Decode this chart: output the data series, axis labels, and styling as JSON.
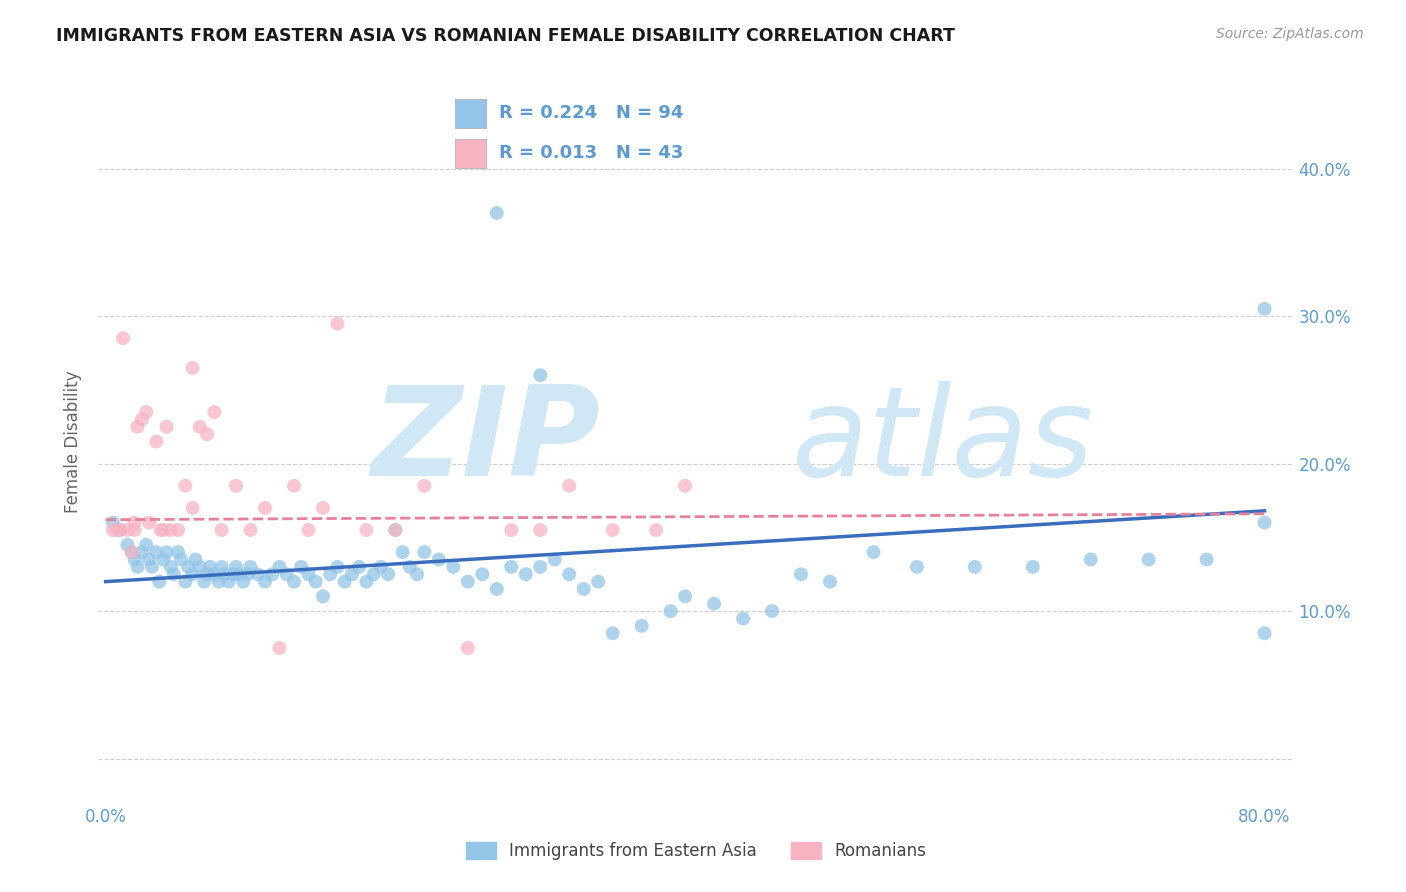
{
  "title": "IMMIGRANTS FROM EASTERN ASIA VS ROMANIAN FEMALE DISABILITY CORRELATION CHART",
  "source_text": "Source: ZipAtlas.com",
  "ylabel": "Female Disability",
  "xlim": [
    -0.005,
    0.82
  ],
  "ylim": [
    -0.03,
    0.46
  ],
  "yticks": [
    0.0,
    0.1,
    0.2,
    0.3,
    0.4
  ],
  "ytick_labels_right": [
    "",
    "10.0%",
    "20.0%",
    "30.0%",
    "40.0%"
  ],
  "xticks": [
    0.0,
    0.1,
    0.2,
    0.3,
    0.4,
    0.5,
    0.6,
    0.7,
    0.8
  ],
  "xtick_labels": [
    "0.0%",
    "",
    "",
    "",
    "",
    "",
    "",
    "",
    "80.0%"
  ],
  "blue_label": "Immigrants from Eastern Asia",
  "pink_label": "Romanians",
  "blue_R": "R = 0.224",
  "blue_N": "N = 94",
  "pink_R": "R = 0.013",
  "pink_N": "N = 43",
  "blue_color": "#92c5e8",
  "pink_color": "#f7b3c2",
  "blue_trend_color": "#3a6ebd",
  "pink_trend_color": "#e8809a",
  "watermark_zip": "ZIP",
  "watermark_atlas": "atlas",
  "watermark_color": "#d0e8f5",
  "title_color": "#1a1a1a",
  "axis_label_color": "#666666",
  "tick_color": "#5b9bd5",
  "grid_color": "#d0d0d0",
  "blue_x": [
    0.005,
    0.01,
    0.015,
    0.018,
    0.02,
    0.022,
    0.025,
    0.028,
    0.03,
    0.032,
    0.035,
    0.037,
    0.04,
    0.042,
    0.045,
    0.047,
    0.05,
    0.052,
    0.055,
    0.057,
    0.06,
    0.062,
    0.065,
    0.068,
    0.07,
    0.072,
    0.075,
    0.078,
    0.08,
    0.082,
    0.085,
    0.088,
    0.09,
    0.092,
    0.095,
    0.098,
    0.1,
    0.105,
    0.11,
    0.115,
    0.12,
    0.125,
    0.13,
    0.135,
    0.14,
    0.145,
    0.15,
    0.155,
    0.16,
    0.165,
    0.17,
    0.175,
    0.18,
    0.185,
    0.19,
    0.195,
    0.2,
    0.205,
    0.21,
    0.215,
    0.22,
    0.23,
    0.24,
    0.25,
    0.26,
    0.27,
    0.28,
    0.29,
    0.3,
    0.31,
    0.32,
    0.33,
    0.34,
    0.35,
    0.37,
    0.39,
    0.4,
    0.42,
    0.44,
    0.46,
    0.48,
    0.5,
    0.53,
    0.56,
    0.6,
    0.64,
    0.68,
    0.72,
    0.76,
    0.8,
    0.3,
    0.8,
    0.27,
    0.8
  ],
  "blue_y": [
    0.16,
    0.155,
    0.145,
    0.14,
    0.135,
    0.13,
    0.14,
    0.145,
    0.135,
    0.13,
    0.14,
    0.12,
    0.135,
    0.14,
    0.13,
    0.125,
    0.14,
    0.135,
    0.12,
    0.13,
    0.125,
    0.135,
    0.13,
    0.12,
    0.125,
    0.13,
    0.125,
    0.12,
    0.13,
    0.125,
    0.12,
    0.125,
    0.13,
    0.125,
    0.12,
    0.125,
    0.13,
    0.125,
    0.12,
    0.125,
    0.13,
    0.125,
    0.12,
    0.13,
    0.125,
    0.12,
    0.11,
    0.125,
    0.13,
    0.12,
    0.125,
    0.13,
    0.12,
    0.125,
    0.13,
    0.125,
    0.155,
    0.14,
    0.13,
    0.125,
    0.14,
    0.135,
    0.13,
    0.12,
    0.125,
    0.115,
    0.13,
    0.125,
    0.13,
    0.135,
    0.125,
    0.115,
    0.12,
    0.085,
    0.09,
    0.1,
    0.11,
    0.105,
    0.095,
    0.1,
    0.125,
    0.12,
    0.14,
    0.13,
    0.13,
    0.13,
    0.135,
    0.135,
    0.135,
    0.16,
    0.26,
    0.305,
    0.37,
    0.085
  ],
  "pink_x": [
    0.005,
    0.008,
    0.01,
    0.012,
    0.015,
    0.018,
    0.02,
    0.022,
    0.025,
    0.028,
    0.03,
    0.035,
    0.038,
    0.04,
    0.042,
    0.045,
    0.05,
    0.055,
    0.06,
    0.065,
    0.07,
    0.075,
    0.08,
    0.09,
    0.1,
    0.11,
    0.12,
    0.13,
    0.14,
    0.15,
    0.16,
    0.18,
    0.2,
    0.22,
    0.25,
    0.28,
    0.3,
    0.32,
    0.35,
    0.38,
    0.4,
    0.02,
    0.06
  ],
  "pink_y": [
    0.155,
    0.155,
    0.155,
    0.285,
    0.155,
    0.14,
    0.155,
    0.225,
    0.23,
    0.235,
    0.16,
    0.215,
    0.155,
    0.155,
    0.225,
    0.155,
    0.155,
    0.185,
    0.17,
    0.225,
    0.22,
    0.235,
    0.155,
    0.185,
    0.155,
    0.17,
    0.075,
    0.185,
    0.155,
    0.17,
    0.295,
    0.155,
    0.155,
    0.185,
    0.075,
    0.155,
    0.155,
    0.185,
    0.155,
    0.155,
    0.185,
    0.16,
    0.265
  ],
  "blue_trend_x": [
    0.0,
    0.8
  ],
  "blue_trend_y": [
    0.12,
    0.168
  ],
  "pink_trend_x": [
    0.0,
    0.8
  ],
  "pink_trend_y": [
    0.162,
    0.166
  ]
}
